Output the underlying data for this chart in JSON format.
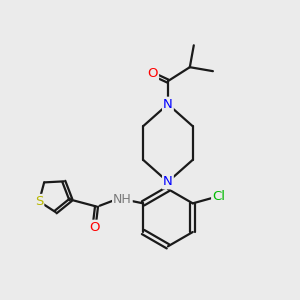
{
  "bg_color": "#ebebeb",
  "bond_color": "#1a1a1a",
  "atom_colors": {
    "O": "#ff0000",
    "N": "#0000ff",
    "S": "#b8b800",
    "Cl": "#00bb00",
    "NH": "#7a7a7a",
    "C": "#1a1a1a"
  },
  "font_size": 9.5,
  "line_width": 1.6
}
